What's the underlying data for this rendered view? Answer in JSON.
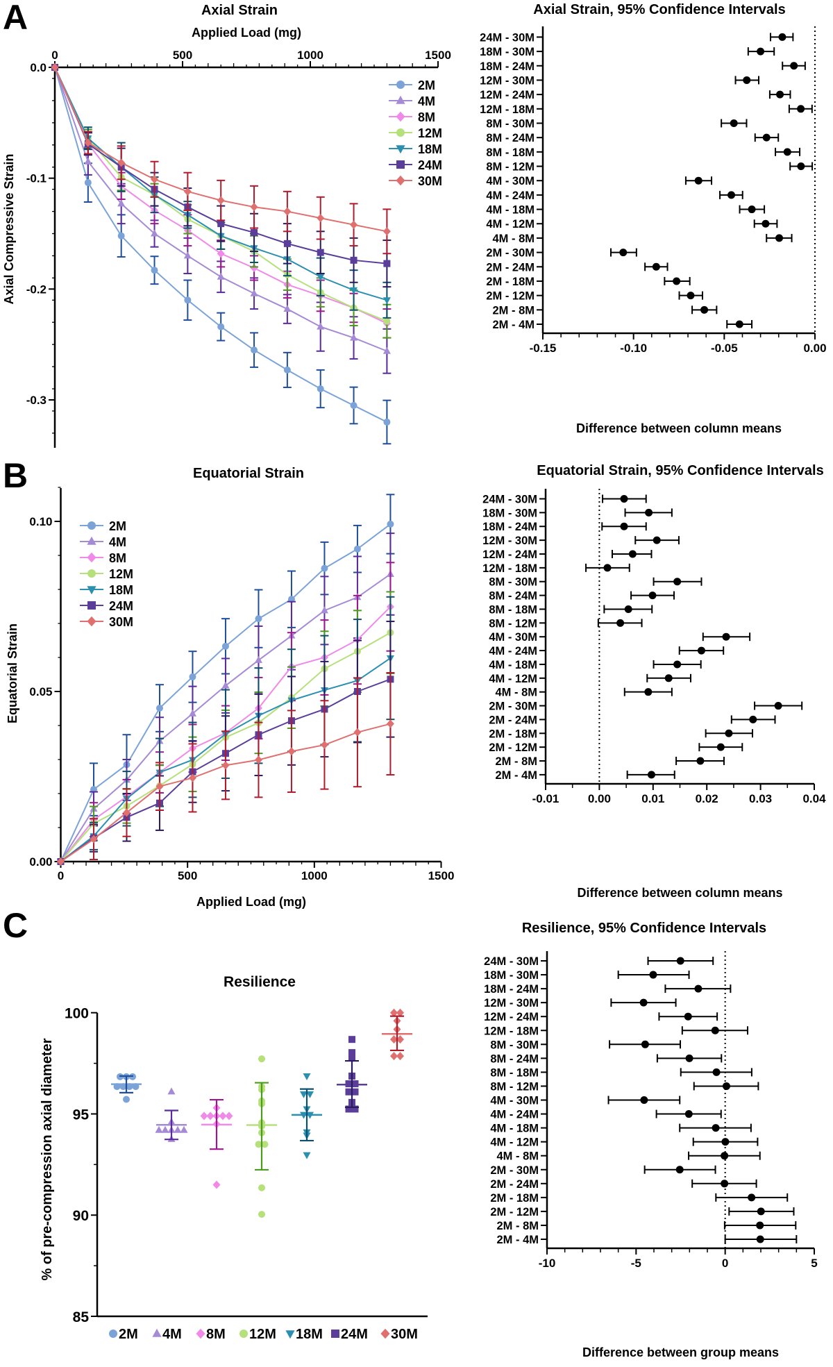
{
  "panels": {
    "a": "A",
    "b": "B",
    "c": "C"
  },
  "chart_data": [
    {
      "type": "line",
      "title": "Axial Strain",
      "xlabel": "Applied Load (mg)",
      "ylabel": "Axial Compressive Strain",
      "xaxis_position": "top",
      "xlim": [
        0,
        1500
      ],
      "ylim": [
        -0.35,
        0
      ],
      "xticks": [
        0,
        500,
        1000,
        1500
      ],
      "xticklabels": [
        "0",
        "500",
        "1000",
        "1500"
      ],
      "yticks": [
        0,
        -0.1,
        -0.2,
        -0.3
      ],
      "yticklabels": [
        "0.0",
        "-0.1",
        "-0.2",
        "-0.3"
      ],
      "legend": "top-right",
      "x": [
        0,
        130,
        260,
        390,
        520,
        650,
        780,
        910,
        1040,
        1170,
        1300
      ],
      "series": [
        {
          "name": "2M",
          "marker": "circle",
          "color": "#7ba3d8",
          "error_color": "#1f4e9a",
          "values": [
            0,
            -0.104,
            -0.152,
            -0.183,
            -0.21,
            -0.234,
            -0.255,
            -0.273,
            -0.29,
            -0.305,
            -0.32
          ],
          "error": [
            0,
            0.0175,
            0.019,
            0.0125,
            0.018,
            0.0125,
            0.0155,
            0.0157,
            0.017,
            0.0165,
            0.0196
          ]
        },
        {
          "name": "4M",
          "marker": "triangle-up",
          "color": "#a58ad6",
          "error_color": "#5b2a9c",
          "values": [
            0,
            -0.085,
            -0.123,
            -0.15,
            -0.17,
            -0.189,
            -0.204,
            -0.218,
            -0.234,
            -0.244,
            -0.256
          ],
          "error": [
            0,
            0.012,
            0.018,
            0.012,
            0.016,
            0.014,
            0.014,
            0.013,
            0.022,
            0.019,
            0.02
          ]
        },
        {
          "name": "8M",
          "marker": "diamond",
          "color": "#f08ae8",
          "error_color": "#a0168f",
          "values": [
            0,
            -0.069,
            -0.107,
            -0.129,
            -0.147,
            -0.168,
            -0.181,
            -0.196,
            -0.206,
            -0.217,
            -0.231
          ],
          "error": [
            0,
            0.01,
            0.012,
            0.012,
            0.014,
            0.012,
            0.011,
            0.012,
            0.014,
            0.013,
            0.013
          ]
        },
        {
          "name": "12M",
          "marker": "circle",
          "color": "#b5e07a",
          "error_color": "#4c9a1e",
          "values": [
            0,
            -0.064,
            -0.099,
            -0.115,
            -0.137,
            -0.152,
            -0.166,
            -0.187,
            -0.203,
            -0.217,
            -0.229
          ],
          "error": [
            0,
            0.008,
            0.012,
            0.01,
            0.013,
            0.012,
            0.014,
            0.014,
            0.013,
            0.016,
            0.015
          ]
        },
        {
          "name": "18M",
          "marker": "triangle-down",
          "color": "#2b8fb0",
          "error_color": "#0b4f6c",
          "values": [
            0,
            -0.064,
            -0.09,
            -0.115,
            -0.133,
            -0.152,
            -0.163,
            -0.173,
            -0.189,
            -0.201,
            -0.21
          ],
          "error": [
            0,
            0.01,
            0.022,
            0.016,
            0.012,
            0.012,
            0.013,
            0.015,
            0.017,
            0.018,
            0.016
          ]
        },
        {
          "name": "24M",
          "marker": "square",
          "color": "#5a3e99",
          "error_color": "#2a1a5e",
          "values": [
            0,
            -0.069,
            -0.09,
            -0.11,
            -0.126,
            -0.141,
            -0.149,
            -0.159,
            -0.167,
            -0.174,
            -0.177
          ],
          "error": [
            0,
            0.01,
            0.017,
            0.015,
            0.017,
            0.016,
            0.017,
            0.018,
            0.019,
            0.02,
            0.021
          ]
        },
        {
          "name": "30M",
          "marker": "diamond",
          "color": "#e07070",
          "error_color": "#b01c2c",
          "values": [
            0,
            -0.068,
            -0.086,
            -0.101,
            -0.112,
            -0.12,
            -0.126,
            -0.13,
            -0.136,
            -0.142,
            -0.148
          ],
          "error": [
            0,
            0.01,
            0.015,
            0.016,
            0.017,
            0.018,
            0.019,
            0.018,
            0.019,
            0.019,
            0.02
          ]
        }
      ]
    },
    {
      "type": "scatter",
      "title": "Axial Strain, 95% Confidence Intervals",
      "xlabel": "Difference between column means",
      "xlim": [
        -0.15,
        0
      ],
      "xticks": [
        -0.15,
        -0.1,
        -0.05,
        0
      ],
      "xticklabels": [
        "-0.15",
        "-0.10",
        "-0.05",
        "0.00"
      ],
      "reference_line": 0,
      "categories": [
        "24M - 30M",
        "18M - 30M",
        "18M - 24M",
        "12M - 30M",
        "12M - 24M",
        "12M - 18M",
        "8M - 30M",
        "8M - 24M",
        "8M - 18M",
        "8M - 12M",
        "4M - 30M",
        "4M - 24M",
        "4M - 18M",
        "4M - 12M",
        "4M - 8M",
        "2M - 30M",
        "2M - 24M",
        "2M - 18M",
        "2M - 12M",
        "2M - 8M",
        "2M - 4M"
      ],
      "estimate": [
        -0.018,
        -0.03,
        -0.0116,
        -0.0376,
        -0.0193,
        -0.0078,
        -0.0447,
        -0.0267,
        -0.0152,
        -0.0077,
        -0.0642,
        -0.0461,
        -0.0348,
        -0.0272,
        -0.0197,
        -0.1057,
        -0.0875,
        -0.0763,
        -0.0685,
        -0.061,
        -0.0416
      ],
      "lower": [
        -0.0245,
        -0.0368,
        -0.0179,
        -0.0438,
        -0.0249,
        -0.0142,
        -0.0516,
        -0.033,
        -0.0218,
        -0.0137,
        -0.0712,
        -0.0524,
        -0.0415,
        -0.0334,
        -0.0267,
        -0.1125,
        -0.0937,
        -0.0829,
        -0.0748,
        -0.0677,
        -0.0485
      ],
      "upper": [
        -0.0121,
        -0.0225,
        -0.0054,
        -0.031,
        -0.0136,
        -0.0016,
        -0.0377,
        -0.0202,
        -0.0084,
        -0.0015,
        -0.057,
        -0.0399,
        -0.0279,
        -0.0209,
        -0.0128,
        -0.0984,
        -0.0813,
        -0.069,
        -0.062,
        -0.0542,
        -0.0348
      ]
    },
    {
      "type": "line",
      "title": "Equatorial Strain",
      "xlabel": "Applied Load (mg)",
      "ylabel": "Equatorial Strain",
      "xaxis_position": "bottom",
      "xlim": [
        0,
        1500
      ],
      "ylim": [
        0,
        0.11
      ],
      "xticks": [
        0,
        500,
        1000,
        1500
      ],
      "xticklabels": [
        "0",
        "500",
        "1000",
        "1500"
      ],
      "yticks": [
        0,
        0.05,
        0.1
      ],
      "yticklabels": [
        "0.00",
        "0.05",
        "0.10"
      ],
      "legend": "top-left",
      "x": [
        0,
        130,
        260,
        390,
        520,
        650,
        780,
        910,
        1040,
        1170,
        1300
      ],
      "series": [
        {
          "name": "2M",
          "marker": "circle",
          "color": "#7ba3d8",
          "error_color": "#1f4e9a",
          "values": [
            0,
            0.0212,
            0.0285,
            0.0451,
            0.0543,
            0.0633,
            0.0714,
            0.0771,
            0.0862,
            0.0919,
            0.0992
          ],
          "error": [
            0,
            0.0077,
            0.0088,
            0.0069,
            0.0075,
            0.0081,
            0.0085,
            0.0083,
            0.0077,
            0.0069,
            0.0087
          ]
        },
        {
          "name": "4M",
          "marker": "triangle-up",
          "color": "#a58ad6",
          "error_color": "#5b2a9c",
          "values": [
            0,
            0.0155,
            0.024,
            0.0354,
            0.0435,
            0.0517,
            0.0592,
            0.0664,
            0.0738,
            0.0777,
            0.0845
          ],
          "error": [
            0,
            0.005,
            0.006,
            0.007,
            0.008,
            0.008,
            0.01,
            0.01,
            0.01,
            0.012,
            0.012
          ]
        },
        {
          "name": "8M",
          "marker": "diamond",
          "color": "#f08ae8",
          "error_color": "#a0168f",
          "values": [
            0,
            0.0123,
            0.0191,
            0.0262,
            0.0333,
            0.0378,
            0.0451,
            0.0573,
            0.06,
            0.0652,
            0.0749
          ],
          "error": [
            0,
            0.005,
            0.005,
            0.006,
            0.007,
            0.008,
            0.009,
            0.01,
            0.011,
            0.013,
            0.013
          ]
        },
        {
          "name": "12M",
          "marker": "circle",
          "color": "#b5e07a",
          "error_color": "#4c9a1e",
          "values": [
            0,
            0.0112,
            0.0163,
            0.0223,
            0.0286,
            0.0365,
            0.0408,
            0.0482,
            0.0567,
            0.0618,
            0.0673
          ],
          "error": [
            0,
            0.005,
            0.005,
            0.006,
            0.008,
            0.008,
            0.009,
            0.009,
            0.011,
            0.012,
            0.012
          ]
        },
        {
          "name": "18M",
          "marker": "triangle-down",
          "color": "#2b8fb0",
          "error_color": "#0b4f6c",
          "values": [
            0,
            0.0075,
            0.0185,
            0.0262,
            0.0299,
            0.0375,
            0.0429,
            0.0474,
            0.0504,
            0.0532,
            0.0598
          ],
          "error": [
            0,
            0.004,
            0.008,
            0.01,
            0.011,
            0.013,
            0.014,
            0.015,
            0.016,
            0.018,
            0.018
          ]
        },
        {
          "name": "24M",
          "marker": "square",
          "color": "#5a3e99",
          "error_color": "#2a1a5e",
          "values": [
            0,
            0.0069,
            0.013,
            0.0172,
            0.0264,
            0.0318,
            0.0373,
            0.0414,
            0.0448,
            0.05,
            0.0536
          ],
          "error": [
            0,
            0.004,
            0.007,
            0.008,
            0.009,
            0.011,
            0.012,
            0.013,
            0.014,
            0.015,
            0.017
          ]
        },
        {
          "name": "30M",
          "marker": "diamond",
          "color": "#e07070",
          "error_color": "#b01c2c",
          "values": [
            0,
            0.0066,
            0.0144,
            0.0221,
            0.0246,
            0.0283,
            0.0299,
            0.0324,
            0.0343,
            0.038,
            0.0405
          ],
          "error": [
            0,
            0.006,
            0.007,
            0.007,
            0.01,
            0.01,
            0.011,
            0.012,
            0.013,
            0.016,
            0.015
          ]
        }
      ]
    },
    {
      "type": "scatter",
      "title": "Equatorial Strain, 95% Confidence Intervals",
      "xlabel": "Difference between column means",
      "xlim": [
        -0.01,
        0.04
      ],
      "xticks": [
        -0.01,
        0,
        0.01,
        0.02,
        0.03,
        0.04
      ],
      "xticklabels": [
        "-0.01",
        "0.00",
        "0.01",
        "0.02",
        "0.03",
        "0.04"
      ],
      "reference_line": 0,
      "categories": [
        "24M - 30M",
        "18M - 30M",
        "18M - 24M",
        "12M - 30M",
        "12M - 24M",
        "12M - 18M",
        "8M - 30M",
        "8M - 24M",
        "8M - 18M",
        "8M - 12M",
        "4M - 30M",
        "4M - 24M",
        "4M - 18M",
        "4M - 12M",
        "4M - 8M",
        "2M - 30M",
        "2M - 24M",
        "2M - 18M",
        "2M - 12M",
        "2M - 8M",
        "2M - 4M"
      ],
      "estimate": [
        0.0046,
        0.0092,
        0.0046,
        0.0107,
        0.0062,
        0.0015,
        0.0145,
        0.0099,
        0.0054,
        0.0039,
        0.0236,
        0.019,
        0.0145,
        0.0129,
        0.0091,
        0.0333,
        0.0286,
        0.0241,
        0.0226,
        0.0188,
        0.0097
      ],
      "lower": [
        0.0006,
        0.0048,
        0.0005,
        0.0067,
        0.0024,
        -0.0025,
        0.0101,
        0.0059,
        0.0009,
        -0.0002,
        0.0193,
        0.0149,
        0.0101,
        0.0089,
        0.0047,
        0.0289,
        0.0246,
        0.0198,
        0.0186,
        0.0143,
        0.0052
      ],
      "upper": [
        0.0087,
        0.0135,
        0.0087,
        0.0148,
        0.0097,
        0.0056,
        0.019,
        0.0139,
        0.0098,
        0.0079,
        0.028,
        0.0231,
        0.0189,
        0.017,
        0.0135,
        0.0377,
        0.0327,
        0.0285,
        0.0266,
        0.0232,
        0.014
      ]
    },
    {
      "type": "scatter",
      "title": "Resilience",
      "ylabel": "% of pre-compression axial diameter",
      "ylim": [
        85,
        100
      ],
      "yticks": [
        85,
        90,
        95,
        100
      ],
      "yticklabels": [
        "85",
        "90",
        "95",
        "100"
      ],
      "legend": "bottom",
      "groups": [
        {
          "name": "2M",
          "marker": "circle",
          "color": "#7ba3d8",
          "error_color": "#1f4e9a",
          "points": [
            96.84,
            96.84,
            96.84,
            96.35,
            96.35,
            96.35,
            96.35,
            95.72
          ],
          "mean": 96.47,
          "sd_low": 96.05,
          "sd_high": 96.87
        },
        {
          "name": "4M",
          "marker": "triangle-up",
          "color": "#a58ad6",
          "error_color": "#5b2a9c",
          "points": [
            96.1,
            94.6,
            94.2,
            94.2,
            94.2,
            94.2,
            94.2,
            93.75
          ],
          "mean": 94.46,
          "sd_low": 93.74,
          "sd_high": 95.17
        },
        {
          "name": "8M",
          "marker": "diamond",
          "color": "#f08ae8",
          "error_color": "#a0168f",
          "points": [
            95.3,
            94.9,
            94.9,
            94.9,
            94.9,
            94.9,
            94.5,
            91.5
          ],
          "mean": 94.47,
          "sd_low": 93.26,
          "sd_high": 95.7
        },
        {
          "name": "12M",
          "marker": "circle",
          "color": "#b5e07a",
          "error_color": "#4c9a1e",
          "points": [
            97.72,
            96.35,
            96.2,
            95.64,
            95.5,
            94.56,
            94.4,
            94.07,
            93.5,
            93.5,
            91.35,
            90.04
          ],
          "mean": 94.45,
          "sd_low": 92.24,
          "sd_high": 96.54
        },
        {
          "name": "18M",
          "marker": "triangle-down",
          "color": "#2b8fb0",
          "error_color": "#0b4f6c",
          "points": [
            96.87,
            95.98,
            95.98,
            95.24,
            94.96,
            94.96,
            94.1,
            93.94,
            92.97
          ],
          "mean": 94.95,
          "sd_low": 93.68,
          "sd_high": 96.23
        },
        {
          "name": "24M",
          "marker": "square",
          "color": "#5a3e99",
          "error_color": "#2a1a5e",
          "points": [
            98.68,
            98.03,
            97.78,
            96.87,
            96.49,
            96.49,
            96.09,
            96.09,
            95.57,
            95.24,
            95.24
          ],
          "mean": 96.45,
          "sd_low": 95.33,
          "sd_high": 97.62
        },
        {
          "name": "30M",
          "marker": "diamond",
          "color": "#e07070",
          "error_color": "#b01c2c",
          "points": [
            100,
            100,
            99.6,
            99.18,
            98.68,
            98.68,
            97.86,
            97.86
          ],
          "mean": 98.95,
          "sd_low": 98.14,
          "sd_high": 99.83
        }
      ]
    },
    {
      "type": "scatter",
      "title": "Resilience, 95% Confidence Intervals",
      "xlabel": "Difference between group means",
      "xlim": [
        -10,
        5
      ],
      "xticks": [
        -10,
        -5,
        0,
        5
      ],
      "xticklabels": [
        "-10",
        "-5",
        "0",
        "5"
      ],
      "reference_line": 0,
      "categories": [
        "24M - 30M",
        "18M - 30M",
        "18M - 24M",
        "12M - 30M",
        "12M - 24M",
        "12M - 18M",
        "8M - 30M",
        "8M - 24M",
        "8M - 18M",
        "8M - 12M",
        "4M - 30M",
        "4M - 24M",
        "4M - 18M",
        "4M - 12M",
        "4M - 8M",
        "2M - 30M",
        "2M - 24M",
        "2M - 18M",
        "2M - 12M",
        "2M - 8M",
        "2M - 4M"
      ],
      "estimate": [
        -2.51,
        -4.04,
        -1.51,
        -4.58,
        -2.08,
        -0.56,
        -4.49,
        -2.01,
        -0.49,
        0.07,
        -4.55,
        -2.04,
        -0.53,
        0.01,
        -0.04,
        -2.55,
        -0.04,
        1.48,
        2.01,
        1.95,
        1.97
      ],
      "lower": [
        -4.33,
        -6.0,
        -3.36,
        -6.4,
        -3.71,
        -2.41,
        -6.49,
        -3.81,
        -2.49,
        -1.75,
        -6.55,
        -3.86,
        -2.55,
        -1.79,
        -2.05,
        -4.52,
        -1.85,
        -0.52,
        0.22,
        -0.03,
        0.0
      ],
      "upper": [
        -0.68,
        -2.03,
        0.3,
        -2.77,
        -0.45,
        1.26,
        -2.52,
        -0.21,
        1.49,
        1.86,
        -2.55,
        -0.23,
        1.45,
        1.82,
        1.95,
        -0.55,
        1.75,
        3.49,
        3.85,
        3.96,
        4.0
      ]
    }
  ]
}
